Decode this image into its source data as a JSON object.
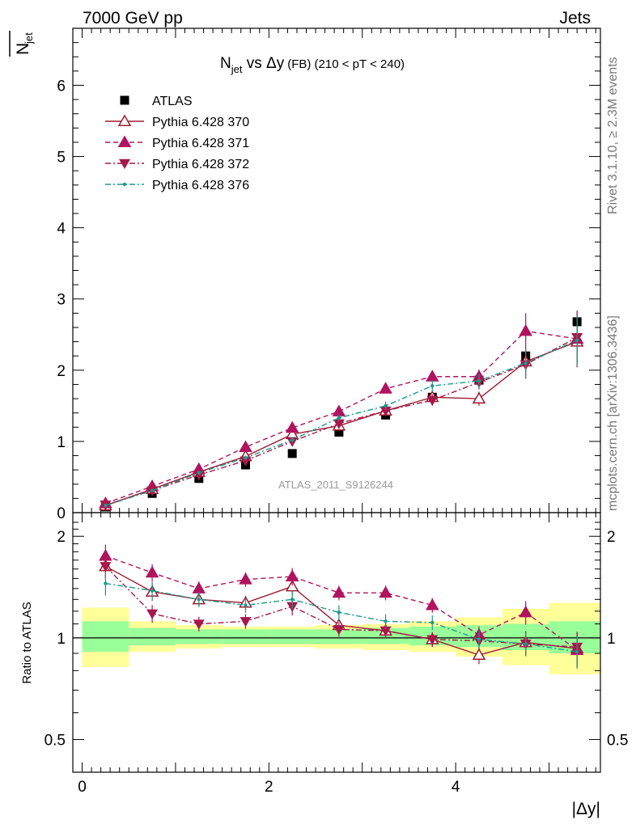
{
  "header": {
    "left": "7000 GeV pp",
    "right": "Jets",
    "side_rivet": "Rivet 3.1.10, ≥ 2.3M events",
    "side_mcplots": "mcplots.cern.ch [arXiv:1306.3436]",
    "watermark": "ATLAS_2011_S9126244"
  },
  "chart_data": [
    {
      "type": "scatter",
      "panel": "main",
      "title_main": "N",
      "title_sub": "jet",
      "title_rest": " vs Δy",
      "title_small": "(FB)",
      "title_tail": " (210 < pT < 240)",
      "ylabel_main": "N",
      "ylabel_sub": "jet",
      "ylim": [
        0,
        6.8
      ],
      "yticks": [
        0,
        1,
        2,
        3,
        4,
        5,
        6
      ],
      "xlim": [
        -0.1,
        5.55
      ],
      "xticks": [
        0,
        2,
        4
      ],
      "legend_position": "top-left",
      "x": [
        0.25,
        0.75,
        1.25,
        1.75,
        2.25,
        2.75,
        3.25,
        3.75,
        4.25,
        4.75,
        5.3
      ],
      "series": [
        {
          "name": "ATLAS",
          "color": "#000000",
          "marker": "square",
          "line": "none",
          "values": [
            0.08,
            0.27,
            0.48,
            0.67,
            0.83,
            1.13,
            1.37,
            1.62,
            1.86,
            2.2,
            2.68
          ],
          "errors": [
            0.01,
            0.02,
            0.03,
            0.04,
            0.05,
            0.05,
            0.06,
            0.07,
            0.08,
            0.1,
            0.1
          ]
        },
        {
          "name": "Pythia 6.428 370",
          "color": "#9b1c31",
          "marker": "triangle-up-open",
          "line": "solid",
          "values": [
            0.1,
            0.33,
            0.57,
            0.79,
            1.1,
            1.22,
            1.43,
            1.62,
            1.6,
            2.12,
            2.4
          ],
          "errors": [
            0.01,
            0.02,
            0.03,
            0.03,
            0.05,
            0.05,
            0.06,
            0.08,
            0.1,
            0.15,
            0.3
          ]
        },
        {
          "name": "Pythia 6.428 371",
          "color": "#b0135f",
          "marker": "triangle-up",
          "line": "dashed",
          "values": [
            0.13,
            0.37,
            0.61,
            0.92,
            1.19,
            1.42,
            1.74,
            1.91,
            1.91,
            2.55,
            2.44
          ],
          "errors": [
            0.01,
            0.02,
            0.03,
            0.03,
            0.04,
            0.05,
            0.06,
            0.08,
            0.1,
            0.25,
            0.4
          ]
        },
        {
          "name": "Pythia 6.428 372",
          "color": "#a8174a",
          "marker": "triangle-down",
          "line": "dashdot",
          "values": [
            0.11,
            0.31,
            0.53,
            0.73,
            1.0,
            1.25,
            1.43,
            1.58,
            1.83,
            2.08,
            2.46
          ],
          "errors": [
            0.01,
            0.02,
            0.03,
            0.03,
            0.04,
            0.05,
            0.06,
            0.08,
            0.1,
            0.2,
            0.35
          ]
        },
        {
          "name": "Pythia 6.428 376",
          "color": "#1a9a8a",
          "marker": "dot",
          "line": "dashdot",
          "values": [
            0.1,
            0.31,
            0.56,
            0.77,
            1.02,
            1.33,
            1.5,
            1.78,
            1.85,
            2.1,
            2.42
          ],
          "errors": [
            0.01,
            0.02,
            0.03,
            0.03,
            0.04,
            0.05,
            0.06,
            0.08,
            0.1,
            0.2,
            0.35
          ]
        }
      ]
    },
    {
      "type": "scatter",
      "panel": "ratio",
      "ylabel": "Ratio to ATLAS",
      "ylim": [
        0.4,
        2.35
      ],
      "yticks": [
        0.5,
        1,
        2
      ],
      "yticklabels": [
        "0.5",
        "1",
        "2"
      ],
      "scale": "log",
      "bins": [
        [
          0,
          0.5
        ],
        [
          0.5,
          1
        ],
        [
          1,
          1.5
        ],
        [
          1.5,
          2
        ],
        [
          2,
          2.5
        ],
        [
          2.5,
          3
        ],
        [
          3,
          3.5
        ],
        [
          3.5,
          4
        ],
        [
          4,
          4.5
        ],
        [
          4.5,
          5
        ],
        [
          5,
          5.55
        ]
      ],
      "band_green": [
        [
          0.91,
          1.12
        ],
        [
          0.95,
          1.07
        ],
        [
          0.96,
          1.06
        ],
        [
          0.96,
          1.06
        ],
        [
          0.96,
          1.06
        ],
        [
          0.96,
          1.06
        ],
        [
          0.96,
          1.07
        ],
        [
          0.95,
          1.08
        ],
        [
          0.94,
          1.09
        ],
        [
          0.92,
          1.1
        ],
        [
          0.9,
          1.12
        ]
      ],
      "band_yellow": [
        [
          0.82,
          1.23
        ],
        [
          0.91,
          1.12
        ],
        [
          0.93,
          1.09
        ],
        [
          0.94,
          1.08
        ],
        [
          0.94,
          1.08
        ],
        [
          0.93,
          1.09
        ],
        [
          0.92,
          1.1
        ],
        [
          0.91,
          1.12
        ],
        [
          0.88,
          1.15
        ],
        [
          0.83,
          1.22
        ],
        [
          0.78,
          1.27
        ]
      ],
      "series": [
        {
          "name": "Pythia 6.428 370",
          "values": [
            1.63,
            1.37,
            1.3,
            1.27,
            1.42,
            1.09,
            1.05,
            0.99,
            0.89,
            0.97,
            0.93
          ]
        },
        {
          "name": "Pythia 6.428 371",
          "values": [
            1.75,
            1.56,
            1.4,
            1.49,
            1.52,
            1.36,
            1.36,
            1.25,
            1.02,
            1.19,
            0.92
          ]
        },
        {
          "name": "Pythia 6.428 372",
          "values": [
            1.63,
            1.18,
            1.1,
            1.12,
            1.24,
            1.06,
            1.05,
            0.99,
            0.98,
            0.96,
            0.94
          ]
        },
        {
          "name": "Pythia 6.428 376",
          "values": [
            1.45,
            1.38,
            1.3,
            1.25,
            1.3,
            1.19,
            1.12,
            1.11,
            0.99,
            0.96,
            0.91
          ]
        }
      ],
      "errors": [
        0.08,
        0.06,
        0.05,
        0.05,
        0.06,
        0.05,
        0.05,
        0.05,
        0.06,
        0.08,
        0.11
      ]
    }
  ],
  "x_axis_label": "|Δy|"
}
